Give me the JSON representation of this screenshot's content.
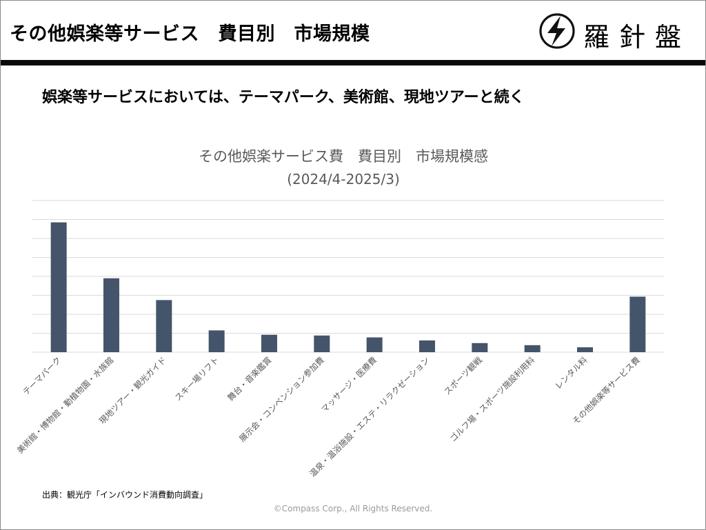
{
  "header": {
    "title": "その他娯楽等サービス　費目別　市場規模",
    "logo_text": "羅針盤",
    "logo_icon": "compass-bolt-icon"
  },
  "subtitle": "娯楽等サービスにおいては、テーマパーク、美術館、現地ツアーと続く",
  "chart_data": {
    "type": "bar",
    "title": "その他娯楽サービス費　費目別　市場規模感",
    "subtitle": "(2024/4-2025/3)",
    "categories": [
      "テーマパーク",
      "美術館・博物館・動植物園・水族館",
      "現地ツアー・観光ガイド",
      "スキー場リフト",
      "舞台・音楽鑑賞",
      "展示会・コンベンション参加費",
      "マッサージ・医療費",
      "温泉・温浴施設・エステ・リラクゼーション",
      "スポーツ観戦",
      "ゴルフ場・スポーツ施設利用料",
      "レンタル料",
      "その他娯楽等サービス費"
    ],
    "values": [
      6.85,
      3.9,
      2.75,
      1.15,
      0.92,
      0.88,
      0.78,
      0.62,
      0.48,
      0.37,
      0.26,
      2.93
    ],
    "ylim": [
      0,
      8
    ],
    "gridlines": 8,
    "grid": true,
    "legend": false,
    "bar_color": "#44546a"
  },
  "source": "出典：観光庁「インバウンド消費動向調査」",
  "copyright": "©Compass Corp., All Rights Reserved."
}
